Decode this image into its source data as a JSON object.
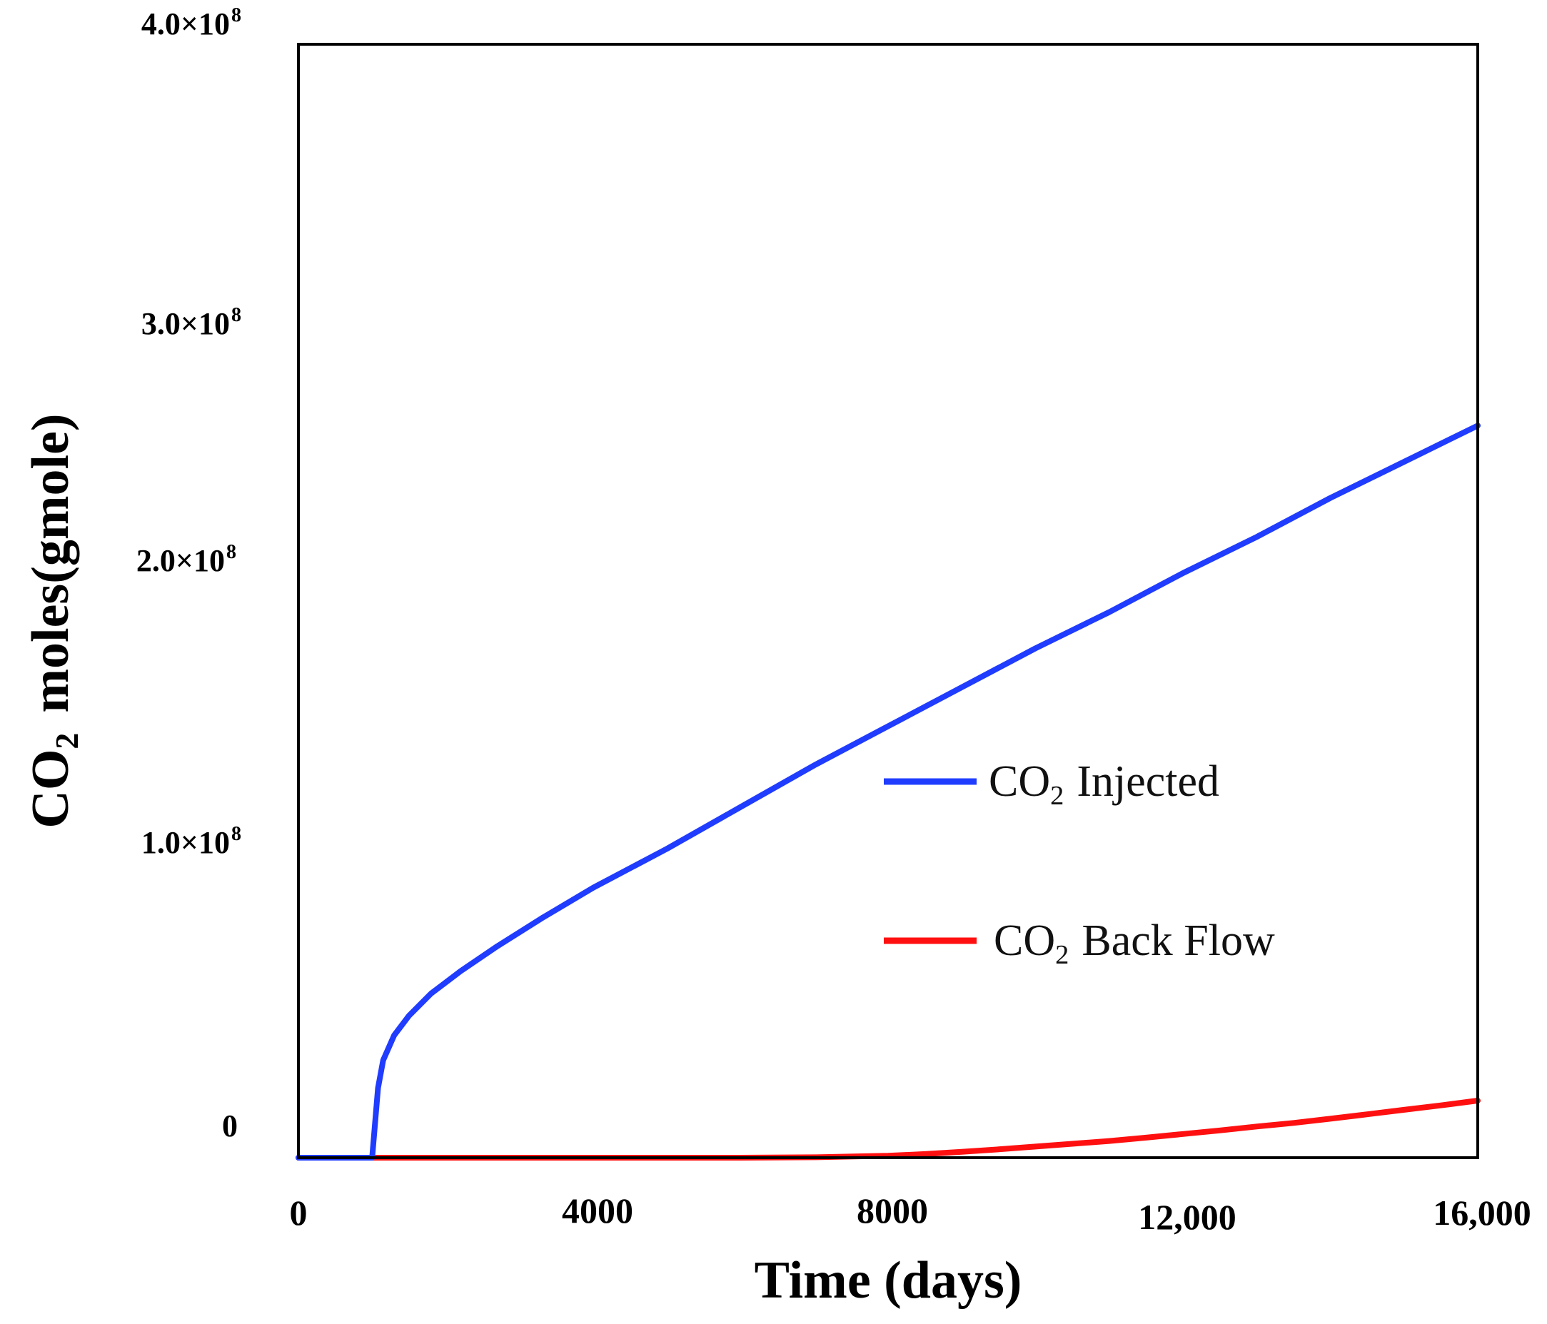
{
  "chart_data": {
    "type": "line",
    "title": "",
    "xlabel": "Time (days)",
    "ylabel": {
      "prefix": "CO",
      "sub": "2",
      "rest": "moles(gmole)"
    },
    "xlim": [
      0,
      16000
    ],
    "ylim": [
      0,
      400000000
    ],
    "grid": false,
    "legend_position": "center-right",
    "x_ticks": [
      {
        "value": 0,
        "label": "0"
      },
      {
        "value": 4000,
        "label": "4000"
      },
      {
        "value": 8000,
        "label": "8000"
      },
      {
        "value": 12000,
        "label": "12,000"
      },
      {
        "value": 16000,
        "label": "16,000"
      }
    ],
    "y_ticks": [
      {
        "value": 0,
        "label": "0",
        "exp": ""
      },
      {
        "value": 100000000,
        "label": "1.0×10",
        "exp": "8"
      },
      {
        "value": 200000000,
        "label": "2.0×10",
        "exp": "8"
      },
      {
        "value": 300000000,
        "label": "3.0×10",
        "exp": "8"
      },
      {
        "value": 400000000,
        "label": "4.0×10",
        "exp": "8"
      }
    ],
    "series": [
      {
        "name": "CO2 Injected",
        "label_prefix": "CO",
        "label_sub": "2",
        "label_rest": "Injected",
        "color": "#1f3cff",
        "x": [
          0,
          1000,
          1080,
          1150,
          1300,
          1500,
          1800,
          2200,
          2700,
          3300,
          4000,
          5000,
          6000,
          7000,
          8000,
          9000,
          10000,
          11000,
          12000,
          13000,
          14000,
          15000,
          16000
        ],
        "y": [
          0,
          0,
          25000000,
          35000000,
          44000000,
          51000000,
          59000000,
          67000000,
          76000000,
          86000000,
          97000000,
          111000000,
          126000000,
          141000000,
          155000000,
          169000000,
          183000000,
          196000000,
          210000000,
          223000000,
          237000000,
          250000000,
          263000000
        ]
      },
      {
        "name": "CO2 Back Flow",
        "label_prefix": "CO",
        "label_sub": "2",
        "label_rest": "Back Flow",
        "color": "#ff1010",
        "x": [
          0,
          6000,
          7000,
          8000,
          8500,
          9000,
          9500,
          10000,
          10500,
          11000,
          11500,
          12000,
          12500,
          13000,
          13500,
          14000,
          14500,
          15000,
          15500,
          16000
        ],
        "y": [
          0,
          0,
          150000,
          700000,
          1300000,
          2100000,
          3000000,
          4000000,
          5000000,
          6000000,
          7200000,
          8500000,
          9800000,
          11200000,
          12500000,
          14000000,
          15600000,
          17200000,
          18800000,
          20500000
        ]
      }
    ]
  }
}
